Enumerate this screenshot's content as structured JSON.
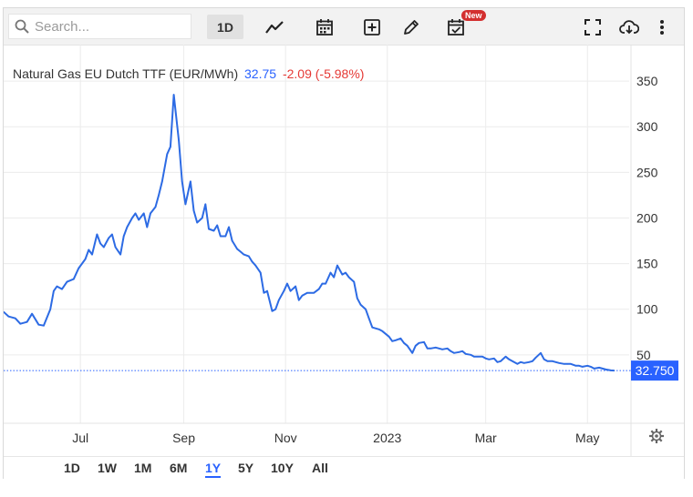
{
  "toolbar": {
    "search_placeholder": "Search...",
    "interval_label": "1D",
    "new_badge": "New",
    "icons": [
      "search-icon",
      "line-chart-icon",
      "calendar-icon",
      "add-compare-icon",
      "draw-pencil-icon",
      "event-calendar-icon",
      "fullscreen-icon",
      "download-cloud-icon",
      "more-vertical-icon"
    ]
  },
  "legend": {
    "name": "Natural Gas EU Dutch TTF (EUR/MWh)",
    "last": "32.75",
    "change": "-2.09 (-5.98%)"
  },
  "colors": {
    "line": "#2d6be4",
    "last_price_label": "#2962ff",
    "negative": "#e53935",
    "grid": "#ececec"
  },
  "settings_icon": "gear-icon",
  "range_buttons": [
    "1D",
    "1W",
    "1M",
    "6M",
    "1Y",
    "5Y",
    "10Y",
    "All"
  ],
  "active_range": "1Y",
  "chart_data": {
    "type": "line",
    "title": "Natural Gas EU Dutch TTF (EUR/MWh)",
    "xlabel": "",
    "ylabel": "",
    "grid": true,
    "ylim": [
      -25,
      390
    ],
    "xlim": [
      "2022-05-16",
      "2023-05-26"
    ],
    "y_ticks": [
      50,
      100,
      150,
      200,
      250,
      300,
      350
    ],
    "x_ticks": [
      {
        "date": "2022-07-01",
        "label": "Jul"
      },
      {
        "date": "2022-09-01",
        "label": "Sep"
      },
      {
        "date": "2022-11-01",
        "label": "Nov"
      },
      {
        "date": "2023-01-01",
        "label": "2023"
      },
      {
        "date": "2023-03-01",
        "label": "Mar"
      },
      {
        "date": "2023-05-01",
        "label": "May"
      }
    ],
    "last_value": 32.75,
    "last_value_label": "32.750",
    "series": [
      {
        "values": [
          [
            "2022-05-16",
            97
          ],
          [
            "2022-05-19",
            92
          ],
          [
            "2022-05-23",
            90
          ],
          [
            "2022-05-26",
            84
          ],
          [
            "2022-05-30",
            86
          ],
          [
            "2022-06-02",
            95
          ],
          [
            "2022-06-06",
            83
          ],
          [
            "2022-06-09",
            82
          ],
          [
            "2022-06-13",
            100
          ],
          [
            "2022-06-15",
            120
          ],
          [
            "2022-06-17",
            125
          ],
          [
            "2022-06-20",
            122
          ],
          [
            "2022-06-23",
            130
          ],
          [
            "2022-06-27",
            133
          ],
          [
            "2022-06-30",
            145
          ],
          [
            "2022-07-04",
            155
          ],
          [
            "2022-07-06",
            165
          ],
          [
            "2022-07-08",
            160
          ],
          [
            "2022-07-11",
            182
          ],
          [
            "2022-07-13",
            172
          ],
          [
            "2022-07-15",
            168
          ],
          [
            "2022-07-18",
            178
          ],
          [
            "2022-07-20",
            182
          ],
          [
            "2022-07-22",
            168
          ],
          [
            "2022-07-25",
            160
          ],
          [
            "2022-07-27",
            180
          ],
          [
            "2022-07-29",
            190
          ],
          [
            "2022-08-01",
            200
          ],
          [
            "2022-08-03",
            205
          ],
          [
            "2022-08-05",
            198
          ],
          [
            "2022-08-08",
            205
          ],
          [
            "2022-08-10",
            190
          ],
          [
            "2022-08-12",
            205
          ],
          [
            "2022-08-15",
            212
          ],
          [
            "2022-08-17",
            225
          ],
          [
            "2022-08-19",
            240
          ],
          [
            "2022-08-22",
            270
          ],
          [
            "2022-08-24",
            278
          ],
          [
            "2022-08-26",
            335
          ],
          [
            "2022-08-29",
            285
          ],
          [
            "2022-08-31",
            240
          ],
          [
            "2022-09-02",
            215
          ],
          [
            "2022-09-05",
            240
          ],
          [
            "2022-09-07",
            208
          ],
          [
            "2022-09-09",
            195
          ],
          [
            "2022-09-12",
            200
          ],
          [
            "2022-09-14",
            215
          ],
          [
            "2022-09-16",
            188
          ],
          [
            "2022-09-19",
            186
          ],
          [
            "2022-09-21",
            192
          ],
          [
            "2022-09-23",
            180
          ],
          [
            "2022-09-26",
            180
          ],
          [
            "2022-09-28",
            190
          ],
          [
            "2022-09-30",
            175
          ],
          [
            "2022-10-03",
            166
          ],
          [
            "2022-10-05",
            163
          ],
          [
            "2022-10-07",
            160
          ],
          [
            "2022-10-10",
            158
          ],
          [
            "2022-10-12",
            152
          ],
          [
            "2022-10-14",
            148
          ],
          [
            "2022-10-17",
            140
          ],
          [
            "2022-10-19",
            118
          ],
          [
            "2022-10-21",
            120
          ],
          [
            "2022-10-24",
            98
          ],
          [
            "2022-10-26",
            100
          ],
          [
            "2022-10-28",
            110
          ],
          [
            "2022-10-31",
            120
          ],
          [
            "2022-11-02",
            128
          ],
          [
            "2022-11-04",
            120
          ],
          [
            "2022-11-07",
            125
          ],
          [
            "2022-11-09",
            110
          ],
          [
            "2022-11-11",
            115
          ],
          [
            "2022-11-14",
            118
          ],
          [
            "2022-11-16",
            118
          ],
          [
            "2022-11-18",
            118
          ],
          [
            "2022-11-21",
            122
          ],
          [
            "2022-11-23",
            128
          ],
          [
            "2022-11-25",
            128
          ],
          [
            "2022-11-28",
            140
          ],
          [
            "2022-11-30",
            135
          ],
          [
            "2022-12-02",
            148
          ],
          [
            "2022-12-05",
            138
          ],
          [
            "2022-12-07",
            140
          ],
          [
            "2022-12-09",
            135
          ],
          [
            "2022-12-12",
            130
          ],
          [
            "2022-12-14",
            112
          ],
          [
            "2022-12-16",
            105
          ],
          [
            "2022-12-19",
            100
          ],
          [
            "2022-12-21",
            90
          ],
          [
            "2022-12-23",
            80
          ],
          [
            "2022-12-27",
            78
          ],
          [
            "2022-12-29",
            76
          ],
          [
            "2023-01-02",
            70
          ],
          [
            "2023-01-04",
            65
          ],
          [
            "2023-01-06",
            66
          ],
          [
            "2023-01-09",
            68
          ],
          [
            "2023-01-11",
            63
          ],
          [
            "2023-01-13",
            60
          ],
          [
            "2023-01-16",
            52
          ],
          [
            "2023-01-18",
            60
          ],
          [
            "2023-01-20",
            63
          ],
          [
            "2023-01-23",
            64
          ],
          [
            "2023-01-25",
            57
          ],
          [
            "2023-01-27",
            57
          ],
          [
            "2023-01-30",
            58
          ],
          [
            "2023-02-01",
            57
          ],
          [
            "2023-02-03",
            56
          ],
          [
            "2023-02-06",
            57
          ],
          [
            "2023-02-08",
            54
          ],
          [
            "2023-02-10",
            52
          ],
          [
            "2023-02-13",
            53
          ],
          [
            "2023-02-15",
            54
          ],
          [
            "2023-02-17",
            51
          ],
          [
            "2023-02-20",
            50
          ],
          [
            "2023-02-22",
            48
          ],
          [
            "2023-02-24",
            48
          ],
          [
            "2023-02-27",
            48
          ],
          [
            "2023-03-01",
            46
          ],
          [
            "2023-03-03",
            45
          ],
          [
            "2023-03-06",
            46
          ],
          [
            "2023-03-08",
            42
          ],
          [
            "2023-03-10",
            43
          ],
          [
            "2023-03-13",
            48
          ],
          [
            "2023-03-15",
            45
          ],
          [
            "2023-03-17",
            43
          ],
          [
            "2023-03-20",
            40
          ],
          [
            "2023-03-22",
            42
          ],
          [
            "2023-03-24",
            41
          ],
          [
            "2023-03-27",
            42
          ],
          [
            "2023-03-29",
            43
          ],
          [
            "2023-03-31",
            47
          ],
          [
            "2023-04-03",
            52
          ],
          [
            "2023-04-05",
            45
          ],
          [
            "2023-04-07",
            43
          ],
          [
            "2023-04-10",
            43
          ],
          [
            "2023-04-12",
            42
          ],
          [
            "2023-04-14",
            41
          ],
          [
            "2023-04-17",
            40
          ],
          [
            "2023-04-19",
            40
          ],
          [
            "2023-04-21",
            40
          ],
          [
            "2023-04-24",
            38
          ],
          [
            "2023-04-26",
            38
          ],
          [
            "2023-04-28",
            37
          ],
          [
            "2023-05-01",
            38
          ],
          [
            "2023-05-03",
            37
          ],
          [
            "2023-05-05",
            35
          ],
          [
            "2023-05-08",
            36
          ],
          [
            "2023-05-10",
            35
          ],
          [
            "2023-05-12",
            34
          ],
          [
            "2023-05-15",
            33
          ],
          [
            "2023-05-17",
            32.75
          ]
        ]
      }
    ]
  }
}
